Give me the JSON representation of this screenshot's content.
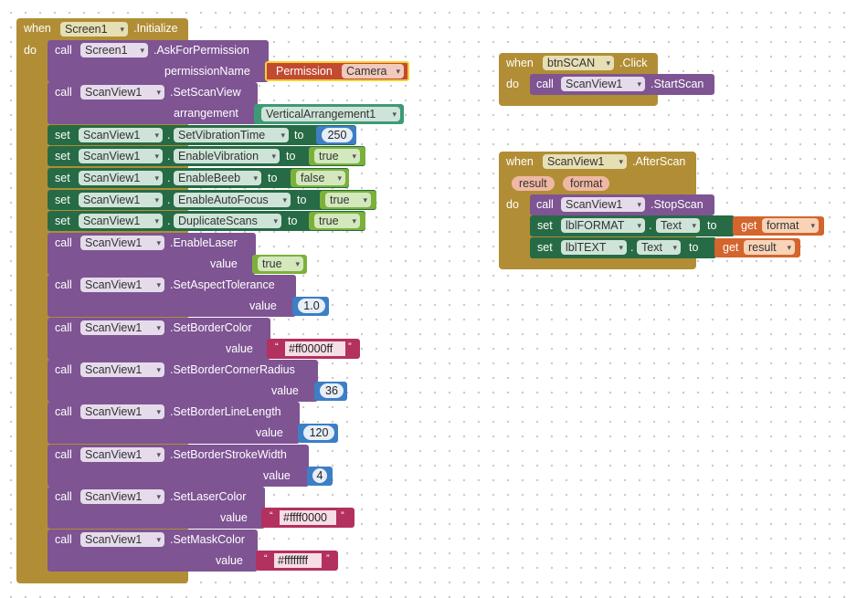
{
  "kw": {
    "when": "when",
    "do": "do",
    "call": "call",
    "set": "set",
    "to": "to",
    "get": "get",
    "value": "value"
  },
  "init": {
    "component": "Screen1",
    "event": ".Initialize"
  },
  "b1": {
    "component": "Screen1",
    "method": ".AskForPermission",
    "param": "permissionName",
    "perm_label": "Permission",
    "perm_value": "Camera"
  },
  "b2": {
    "component": "ScanView1",
    "method": ".SetScanView",
    "param": "arrangement",
    "value": "VerticalArrangement1"
  },
  "s1": {
    "component": "ScanView1",
    "property": "SetVibrationTime",
    "value": "250"
  },
  "s2": {
    "component": "ScanView1",
    "property": "EnableVibration",
    "value": "true"
  },
  "s3": {
    "component": "ScanView1",
    "property": "EnableBeeb",
    "value": "false"
  },
  "s4": {
    "component": "ScanView1",
    "property": "EnableAutoFocus",
    "value": "true"
  },
  "s5": {
    "component": "ScanView1",
    "property": "DuplicateScans",
    "value": "true"
  },
  "c1": {
    "component": "ScanView1",
    "method": ".EnableLaser",
    "value": "true"
  },
  "c2": {
    "component": "ScanView1",
    "method": ".SetAspectTolerance",
    "value": "1.0"
  },
  "c3": {
    "component": "ScanView1",
    "method": ".SetBorderColor",
    "value": "#ff0000ff"
  },
  "c4": {
    "component": "ScanView1",
    "method": ".SetBorderCornerRadius",
    "value": "36"
  },
  "c5": {
    "component": "ScanView1",
    "method": ".SetBorderLineLength",
    "value": "120"
  },
  "c6": {
    "component": "ScanView1",
    "method": ".SetBorderStrokeWidth",
    "value": "4"
  },
  "c7": {
    "component": "ScanView1",
    "method": ".SetLaserColor",
    "value": "#ffff0000"
  },
  "c8": {
    "component": "ScanView1",
    "method": ".SetMaskColor",
    "value": "#ffffffff"
  },
  "click": {
    "component": "btnSCAN",
    "event": ".Click",
    "call_component": "ScanView1",
    "call_method": ".StartScan"
  },
  "after": {
    "component": "ScanView1",
    "event": ".AfterScan",
    "param1": "result",
    "param2": "format",
    "call_component": "ScanView1",
    "call_method": ".StopScan",
    "set1": {
      "component": "lblFORMAT",
      "property": "Text",
      "get": "format"
    },
    "set2": {
      "component": "lblTEXT",
      "property": "Text",
      "get": "result"
    }
  },
  "colors": {
    "event": "#b18e35",
    "procedure": "#7e5493",
    "setter": "#266b45",
    "logic": "#7bb13a",
    "math": "#3d7ec4",
    "text": "#b3315f",
    "variable": "#d3652d"
  }
}
